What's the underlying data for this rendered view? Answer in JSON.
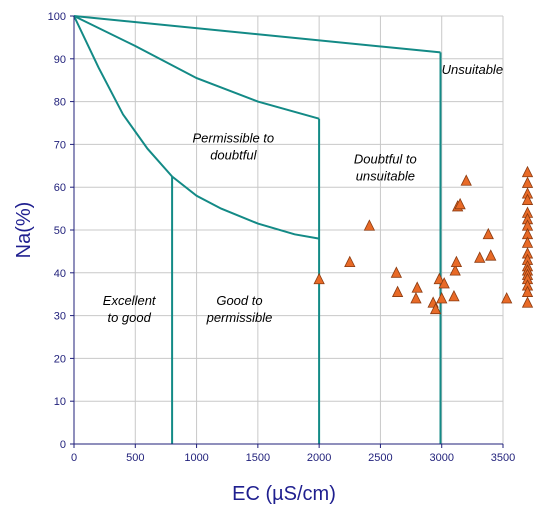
{
  "chart_data": {
    "type": "scatter",
    "xlabel": "EC (µS/cm)",
    "ylabel": "Na(%)",
    "xlim": [
      0,
      3500
    ],
    "ylim": [
      0,
      100
    ],
    "x_ticks": [
      0,
      500,
      1000,
      1500,
      2000,
      2500,
      3000,
      3500
    ],
    "y_ticks": [
      0,
      10,
      20,
      30,
      40,
      50,
      60,
      70,
      80,
      90,
      100
    ],
    "grid": true,
    "colors": {
      "boundary": "#138a86",
      "marker_fill": "#e86a27",
      "marker_stroke": "#8a3a10",
      "grid": "#c8c8c8",
      "axis": "#1f1f7a"
    },
    "boundaries": [
      {
        "x": [
          0,
          2990
        ],
        "y": [
          100,
          91.5
        ]
      },
      {
        "x": [
          0,
          500,
          1000,
          1500,
          2000
        ],
        "y": [
          100,
          93,
          85.5,
          80,
          76
        ]
      },
      {
        "x": [
          0,
          200,
          400,
          600,
          800
        ],
        "y": [
          100,
          88,
          77,
          69,
          62.5
        ]
      },
      {
        "x": [
          800,
          1000,
          1200,
          1500,
          1800,
          2000
        ],
        "y": [
          62.5,
          58,
          55,
          51.5,
          49,
          48
        ]
      },
      {
        "x": [
          800,
          800
        ],
        "y": [
          0,
          62.5
        ]
      },
      {
        "x": [
          2000,
          2000
        ],
        "y": [
          0,
          76
        ]
      },
      {
        "x": [
          2990,
          2990
        ],
        "y": [
          0,
          91.5
        ]
      }
    ],
    "regions": [
      {
        "lines": [
          "Excellent",
          "to good"
        ],
        "x": 450,
        "y": 32.5
      },
      {
        "lines": [
          "Good to",
          "permissible"
        ],
        "x": 1350,
        "y": 32.5
      },
      {
        "lines": [
          "Permissible to",
          "doubtful"
        ],
        "x": 1300,
        "y": 70.5
      },
      {
        "lines": [
          "Doubtful to",
          "unsuitable"
        ],
        "x": 2540,
        "y": 65.5
      },
      {
        "lines": [
          "Unsuitable"
        ],
        "x": 3250,
        "y": 86.5
      }
    ],
    "series": [
      {
        "marker": "triangle",
        "points": [
          [
            2000,
            38.5
          ],
          [
            2250,
            42.5
          ],
          [
            2410,
            51
          ],
          [
            2630,
            40
          ],
          [
            2640,
            35.5
          ],
          [
            2790,
            34
          ],
          [
            2800,
            36.5
          ],
          [
            2930,
            33
          ],
          [
            2950,
            31.5
          ],
          [
            2980,
            38.5
          ],
          [
            3000,
            34
          ],
          [
            3020,
            37.5
          ],
          [
            3100,
            34.5
          ],
          [
            3110,
            40.5
          ],
          [
            3120,
            42.5
          ],
          [
            3130,
            55.5
          ],
          [
            3150,
            56
          ],
          [
            3200,
            61.5
          ],
          [
            3310,
            43.5
          ],
          [
            3380,
            49
          ],
          [
            3400,
            44
          ],
          [
            3530,
            34
          ],
          [
            3700,
            63.5
          ],
          [
            3700,
            61
          ],
          [
            3700,
            58.5
          ],
          [
            3700,
            57
          ],
          [
            3700,
            54
          ],
          [
            3700,
            52.5
          ],
          [
            3700,
            51
          ],
          [
            3700,
            49
          ],
          [
            3700,
            47
          ],
          [
            3700,
            44.5
          ],
          [
            3700,
            43
          ],
          [
            3700,
            41.5
          ],
          [
            3700,
            40.5
          ],
          [
            3700,
            39.5
          ],
          [
            3700,
            38.5
          ],
          [
            3700,
            37
          ],
          [
            3700,
            35.5
          ],
          [
            3700,
            33
          ]
        ]
      }
    ]
  }
}
